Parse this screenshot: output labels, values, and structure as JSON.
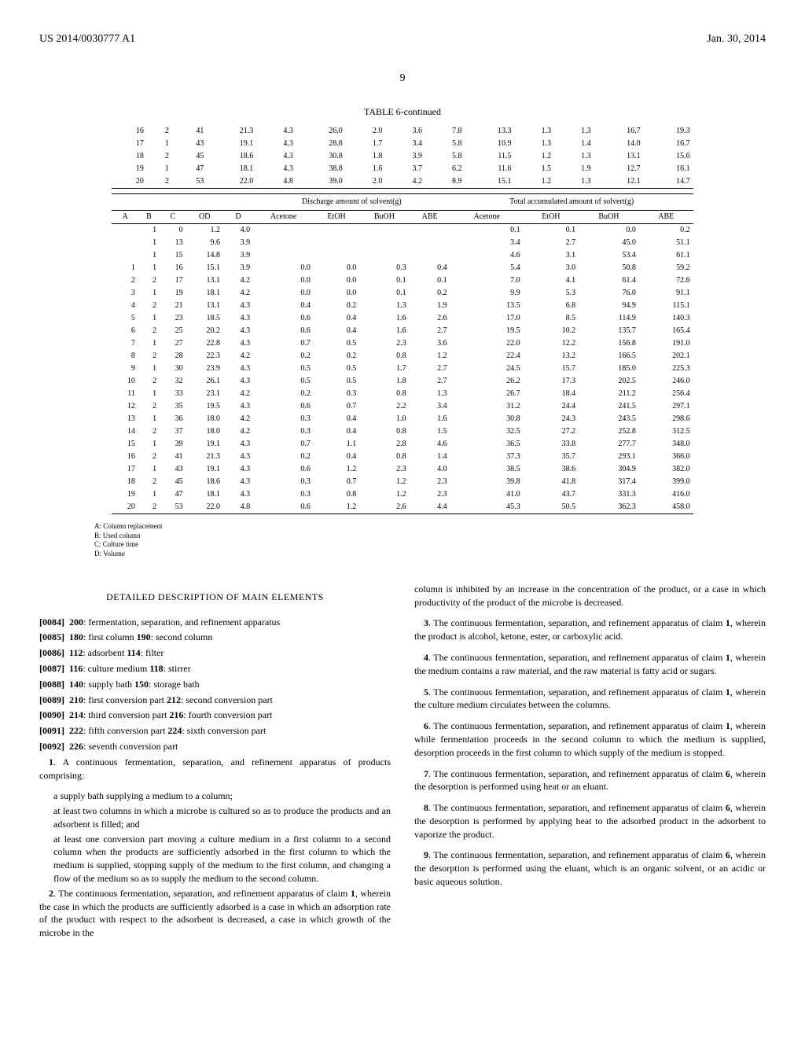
{
  "header": {
    "left": "US 2014/0030777 A1",
    "right": "Jan. 30, 2014"
  },
  "page_number": "9",
  "table_caption": "TABLE 6-continued",
  "top_table_rows": [
    [
      "16",
      "2",
      "41",
      "21.3",
      "4.3",
      "26.0",
      "2.0",
      "3.6",
      "7.8",
      "13.3",
      "1.3",
      "1.3",
      "16.7",
      "19.3"
    ],
    [
      "17",
      "1",
      "43",
      "19.1",
      "4.3",
      "28.8",
      "1.7",
      "3.4",
      "5.8",
      "10.9",
      "1.3",
      "1.4",
      "14.0",
      "16.7"
    ],
    [
      "18",
      "2",
      "45",
      "18.6",
      "4.3",
      "30.8",
      "1.8",
      "3.9",
      "5.8",
      "11.5",
      "1.2",
      "1.3",
      "13.1",
      "15.6"
    ],
    [
      "19",
      "1",
      "47",
      "18.1",
      "4.3",
      "38.8",
      "1.6",
      "3.7",
      "6.2",
      "11.6",
      "1.5",
      "1.9",
      "12.7",
      "16.1"
    ],
    [
      "20",
      "2",
      "53",
      "22.0",
      "4.8",
      "39.0",
      "2.0",
      "4.2",
      "8.9",
      "15.1",
      "1.2",
      "1.3",
      "12.1",
      "14.7"
    ]
  ],
  "bottom_table": {
    "group_headers": [
      {
        "label": "",
        "span": 5
      },
      {
        "label": "Discharge amount of solvent(g)",
        "span": 4
      },
      {
        "label": "Total accumulated amount of solvert(g)",
        "span": 4
      }
    ],
    "col_headers": [
      "A",
      "B",
      "C",
      "OD",
      "D",
      "Acetone",
      "EtOH",
      "BuOH",
      "ABE",
      "Acetone",
      "EtOH",
      "BuOH",
      "ABE"
    ],
    "rows": [
      [
        "",
        "1",
        "0",
        "1.2",
        "4.0",
        "",
        "",
        "",
        "",
        "0.1",
        "0.1",
        "0.0",
        "0.2"
      ],
      [
        "",
        "1",
        "13",
        "9.6",
        "3.9",
        "",
        "",
        "",
        "",
        "3.4",
        "2.7",
        "45.0",
        "51.1"
      ],
      [
        "",
        "1",
        "15",
        "14.8",
        "3.9",
        "",
        "",
        "",
        "",
        "4.6",
        "3.1",
        "53.4",
        "61.1"
      ],
      [
        "1",
        "1",
        "16",
        "15.1",
        "3.9",
        "0.0",
        "0.0",
        "0.3",
        "0.4",
        "5.4",
        "3.0",
        "50.8",
        "59.2"
      ],
      [
        "2",
        "2",
        "17",
        "13.1",
        "4.2",
        "0.0",
        "0.0",
        "0.1",
        "0.1",
        "7.0",
        "4.1",
        "61.4",
        "72.6"
      ],
      [
        "3",
        "1",
        "19",
        "18.1",
        "4.2",
        "0.0",
        "0.0",
        "0.1",
        "0.2",
        "9.9",
        "5.3",
        "76.0",
        "91.1"
      ],
      [
        "4",
        "2",
        "21",
        "13.1",
        "4.3",
        "0.4",
        "0.2",
        "1.3",
        "1.9",
        "13.5",
        "6.8",
        "94.9",
        "115.1"
      ],
      [
        "5",
        "1",
        "23",
        "18.5",
        "4.3",
        "0.6",
        "0.4",
        "1.6",
        "2.6",
        "17.0",
        "8.5",
        "114.9",
        "140.3"
      ],
      [
        "6",
        "2",
        "25",
        "20.2",
        "4.3",
        "0.6",
        "0.4",
        "1.6",
        "2.7",
        "19.5",
        "10.2",
        "135.7",
        "165.4"
      ],
      [
        "7",
        "1",
        "27",
        "22.8",
        "4.3",
        "0.7",
        "0.5",
        "2.3",
        "3.6",
        "22.0",
        "12.2",
        "156.8",
        "191.0"
      ],
      [
        "8",
        "2",
        "28",
        "22.3",
        "4.2",
        "0.2",
        "0.2",
        "0.8",
        "1.2",
        "22.4",
        "13.2",
        "166.5",
        "202.1"
      ],
      [
        "9",
        "1",
        "30",
        "23.9",
        "4.3",
        "0.5",
        "0.5",
        "1.7",
        "2.7",
        "24.5",
        "15.7",
        "185.0",
        "225.3"
      ],
      [
        "10",
        "2",
        "32",
        "26.1",
        "4.3",
        "0.5",
        "0.5",
        "1.8",
        "2.7",
        "26.2",
        "17.3",
        "202.5",
        "246.0"
      ],
      [
        "11",
        "1",
        "33",
        "23.1",
        "4.2",
        "0.2",
        "0.3",
        "0.8",
        "1.3",
        "26.7",
        "18.4",
        "211.2",
        "256.4"
      ],
      [
        "12",
        "2",
        "35",
        "19.5",
        "4.3",
        "0.6",
        "0.7",
        "2.2",
        "3.4",
        "31.2",
        "24.4",
        "241.5",
        "297.1"
      ],
      [
        "13",
        "1",
        "36",
        "18.0",
        "4.2",
        "0.3",
        "0.4",
        "1.0",
        "1.6",
        "30.8",
        "24.3",
        "243.5",
        "298.6"
      ],
      [
        "14",
        "2",
        "37",
        "18.0",
        "4.2",
        "0.3",
        "0.4",
        "0.8",
        "1.5",
        "32.5",
        "27.2",
        "252.8",
        "312.5"
      ],
      [
        "15",
        "1",
        "39",
        "19.1",
        "4.3",
        "0.7",
        "1.1",
        "2.8",
        "4.6",
        "36.5",
        "33.8",
        "277.7",
        "348.0"
      ],
      [
        "16",
        "2",
        "41",
        "21.3",
        "4.3",
        "0.2",
        "0.4",
        "0.8",
        "1.4",
        "37.3",
        "35.7",
        "293.1",
        "366.0"
      ],
      [
        "17",
        "1",
        "43",
        "19.1",
        "4.3",
        "0.6",
        "1.2",
        "2.3",
        "4.0",
        "38.5",
        "38.6",
        "304.9",
        "382.0"
      ],
      [
        "18",
        "2",
        "45",
        "18.6",
        "4.3",
        "0.3",
        "0.7",
        "1.2",
        "2.3",
        "39.8",
        "41.8",
        "317.4",
        "399.0"
      ],
      [
        "19",
        "1",
        "47",
        "18.1",
        "4.3",
        "0.3",
        "0.8",
        "1.2",
        "2.3",
        "41.0",
        "43.7",
        "331.3",
        "416.0"
      ],
      [
        "20",
        "2",
        "53",
        "22.0",
        "4.8",
        "0.6",
        "1.2",
        "2.6",
        "4.4",
        "45.3",
        "50.5",
        "362.3",
        "458.0"
      ]
    ]
  },
  "legend": [
    "A: Column replacement",
    "B: Used column",
    "C: Culture time",
    "D: Volume"
  ],
  "section_title": "DETAILED DESCRIPTION OF MAIN ELEMENTS",
  "elements": [
    {
      "num": "[0084]",
      "text": "200: fermentation, separation, and refinement apparatus"
    },
    {
      "num": "[0085]",
      "text": "180: first column 190: second column"
    },
    {
      "num": "[0086]",
      "text": "112: adsorbent 114: filter"
    },
    {
      "num": "[0087]",
      "text": "116: culture medium 118: stirrer"
    },
    {
      "num": "[0088]",
      "text": "140: supply bath 150: storage bath"
    },
    {
      "num": "[0089]",
      "text": "210: first conversion part 212: second conversion part"
    },
    {
      "num": "[0090]",
      "text": "214: third conversion part 216: fourth conversion part"
    },
    {
      "num": "[0091]",
      "text": "222: fifth conversion part 224: sixth conversion part"
    },
    {
      "num": "[0092]",
      "text": "226: seventh conversion part"
    }
  ],
  "claims_left": [
    {
      "num": "1",
      "text": ". A continuous fermentation, separation, and refinement apparatus of products comprising:",
      "subs": [
        "a supply bath supplying a medium to a column;",
        "at least two columns in which a microbe is cultured so as to produce the products and an adsorbent is filled; and",
        "at least one conversion part moving a culture medium in a first column to a second column when the products are sufficiently adsorbed in the first column to which the medium is supplied, stopping supply of the medium to the first column, and changing a flow of the medium so as to supply the medium to the second column."
      ]
    },
    {
      "num": "2",
      "text": ". The continuous fermentation, separation, and refinement apparatus of claim 1, wherein the case in which the products are sufficiently adsorbed is a case in which an adsorption rate of the product with respect to the adsorbent is decreased, a case in which growth of the microbe in the"
    }
  ],
  "claims_right_intro": "column is inhibited by an increase in the concentration of the product, or a case in which productivity of the product of the microbe is decreased.",
  "claims_right": [
    {
      "num": "3",
      "text": ". The continuous fermentation, separation, and refinement apparatus of claim 1, wherein the product is alcohol, ketone, ester, or carboxylic acid."
    },
    {
      "num": "4",
      "text": ". The continuous fermentation, separation, and refinement apparatus of claim 1, wherein the medium contains a raw material, and the raw material is fatty acid or sugars."
    },
    {
      "num": "5",
      "text": ". The continuous fermentation, separation, and refinement apparatus of claim 1, wherein the culture medium circulates between the columns."
    },
    {
      "num": "6",
      "text": ". The continuous fermentation, separation, and refinement apparatus of claim 1, wherein while fermentation proceeds in the second column to which the medium is supplied, desorption proceeds in the first column to which supply of the medium is stopped."
    },
    {
      "num": "7",
      "text": ". The continuous fermentation, separation, and refinement apparatus of claim 6, wherein the desorption is performed using heat or an eluant."
    },
    {
      "num": "8",
      "text": ". The continuous fermentation, separation, and refinement apparatus of claim 6, wherein the desorption is performed by applying heat to the adsorbed product in the adsorbent to vaporize the product."
    },
    {
      "num": "9",
      "text": ". The continuous fermentation, separation, and refinement apparatus of claim 6, wherein the desorption is performed using the eluant, which is an organic solvent, or an acidic or basic aqueous solution."
    }
  ]
}
